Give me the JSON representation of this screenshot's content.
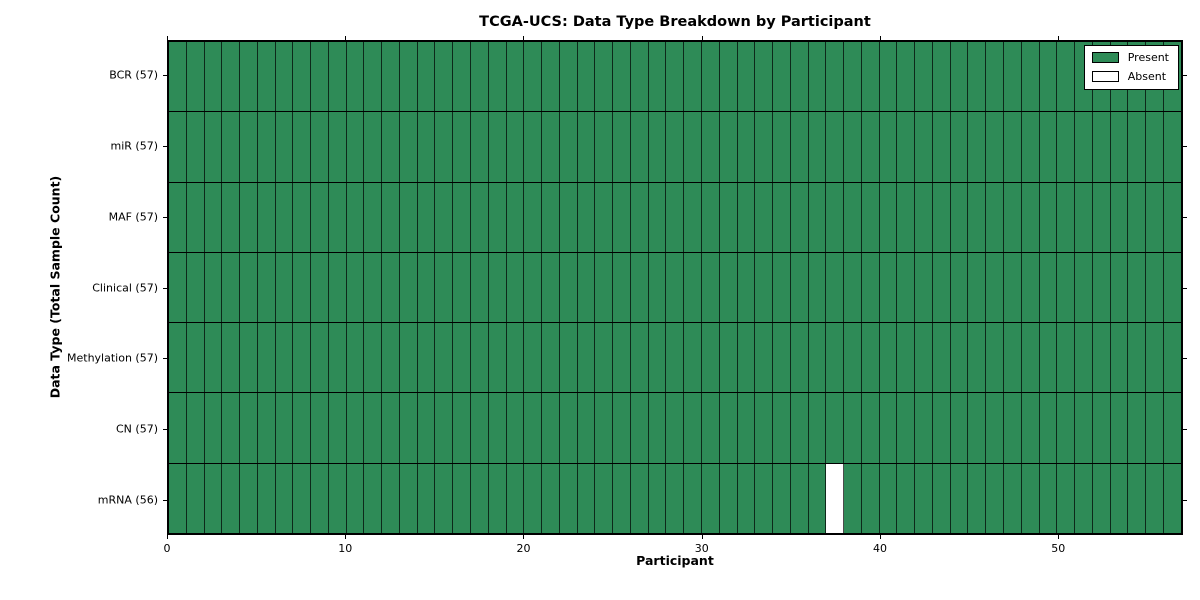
{
  "title": "TCGA-UCS: Data Type Breakdown by Participant",
  "chart_data": {
    "type": "heatmap",
    "title": "TCGA-UCS: Data Type Breakdown by Participant",
    "xlabel": "Participant",
    "ylabel": "Data Type (Total Sample Count)",
    "n_participants": 57,
    "x_ticks": [
      0,
      10,
      20,
      30,
      40,
      50
    ],
    "xlim": [
      0,
      57
    ],
    "grid": true,
    "legend_position": "upper right",
    "rows": [
      {
        "label": "BCR (57)",
        "total": 57,
        "absent_participants": []
      },
      {
        "label": "miR (57)",
        "total": 57,
        "absent_participants": []
      },
      {
        "label": "MAF (57)",
        "total": 57,
        "absent_participants": []
      },
      {
        "label": "Clinical (57)",
        "total": 57,
        "absent_participants": []
      },
      {
        "label": "Methylation (57)",
        "total": 57,
        "absent_participants": []
      },
      {
        "label": "CN (57)",
        "total": 57,
        "absent_participants": []
      },
      {
        "label": "mRNA (56)",
        "total": 56,
        "absent_participants": [
          37
        ]
      }
    ],
    "legend": [
      {
        "label": "Present",
        "color": "#2E8B57"
      },
      {
        "label": "Absent",
        "color": "#FFFFFF"
      }
    ],
    "colors": {
      "present": "#2E8B57",
      "absent": "#FFFFFF",
      "axis_border": "#000000"
    }
  }
}
